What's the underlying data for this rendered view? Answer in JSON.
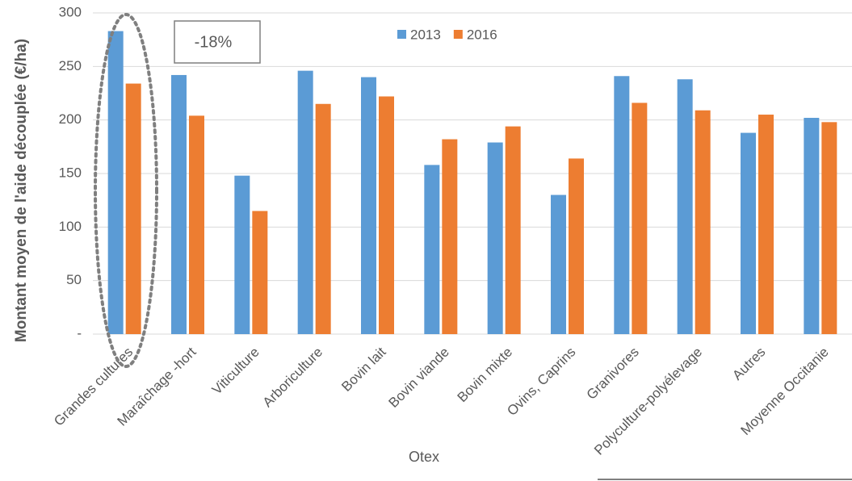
{
  "chart_data": {
    "type": "bar",
    "ylabel": "Montant moyen de l'aide découplée (€/ha)",
    "xlabel": "Otex",
    "annotation": "-18%",
    "categories": [
      "Grandes cultures",
      "Maraîchage -hort",
      "Viticulture",
      "Arboriculture",
      "Bovin lait",
      "Bovin viande",
      "Bovin mixte",
      "Ovins, Caprins",
      "Granivores",
      "Polyculture-polyélevage",
      "Autres",
      "Moyenne Occitanie"
    ],
    "series": [
      {
        "name": "2013",
        "color": "#5b9bd5",
        "values": [
          283,
          242,
          148,
          246,
          240,
          158,
          179,
          130,
          241,
          238,
          188,
          202
        ]
      },
      {
        "name": "2016",
        "color": "#ed7d31",
        "values": [
          234,
          204,
          115,
          215,
          222,
          182,
          194,
          164,
          216,
          209,
          205,
          198
        ]
      }
    ],
    "ylim": [
      0,
      300
    ],
    "yticks": [
      {
        "value": 0,
        "label": "-"
      },
      50,
      100,
      150,
      200,
      250,
      300
    ],
    "grid": true,
    "legend": "top"
  }
}
